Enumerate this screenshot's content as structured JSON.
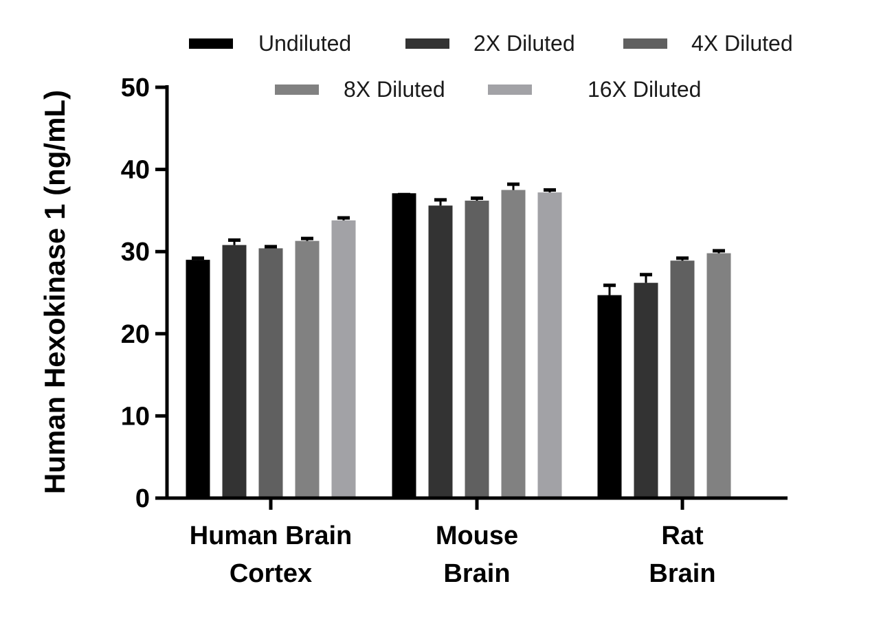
{
  "chart_data": {
    "type": "bar",
    "ylabel": "Human Hexokinase 1 (ng/mL)",
    "xlabel": "",
    "ylim": [
      0,
      50
    ],
    "yticks": [
      "0",
      "10",
      "20",
      "30",
      "40",
      "50"
    ],
    "categories": [
      [
        "Human Brain",
        "Cortex"
      ],
      [
        "Mouse",
        "Brain"
      ],
      [
        "Rat",
        "Brain"
      ]
    ],
    "legend_position": "top",
    "error_bars": true,
    "series": [
      {
        "name": "Undiluted",
        "color": "#000000",
        "values": [
          29.0,
          37.1,
          24.7
        ],
        "errors": [
          0.2,
          0.0,
          1.2
        ]
      },
      {
        "name": "2X Diluted",
        "color": "#333333",
        "values": [
          30.8,
          35.6,
          26.2
        ],
        "errors": [
          0.6,
          0.7,
          1.0
        ]
      },
      {
        "name": "4X Diluted",
        "color": "#606060",
        "values": [
          30.4,
          36.2,
          28.9
        ],
        "errors": [
          0.2,
          0.3,
          0.3
        ]
      },
      {
        "name": "8X Diluted",
        "color": "#818181",
        "values": [
          31.3,
          37.5,
          29.8
        ],
        "errors": [
          0.3,
          0.7,
          0.3
        ]
      },
      {
        "name": "16X Diluted",
        "color": "#a2a2a6",
        "values": [
          33.8,
          37.2,
          null
        ],
        "errors": [
          0.3,
          0.3,
          null
        ]
      }
    ]
  }
}
